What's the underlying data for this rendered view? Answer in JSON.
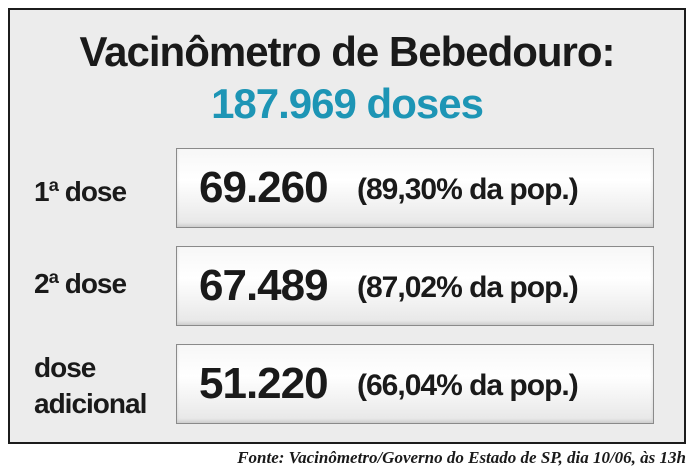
{
  "title": "Vacinômetro de Bebedouro:",
  "total": "187.969 doses",
  "rows": [
    {
      "label": "1ª dose",
      "value": "69.260",
      "percent": "(89,30% da pop.)"
    },
    {
      "label": "2ª dose",
      "value": "67.489",
      "percent": "(87,02% da pop.)"
    },
    {
      "label_line1": "dose",
      "label_line2": "adicional",
      "value": "51.220",
      "percent": "(66,04% da pop.)"
    }
  ],
  "source": "Fonte: Vacinômetro/Governo do Estado de SP, dia 10/06, às 13h",
  "colors": {
    "accent": "#1d95b5",
    "text": "#1a1a1a",
    "panel": "#ececec"
  }
}
